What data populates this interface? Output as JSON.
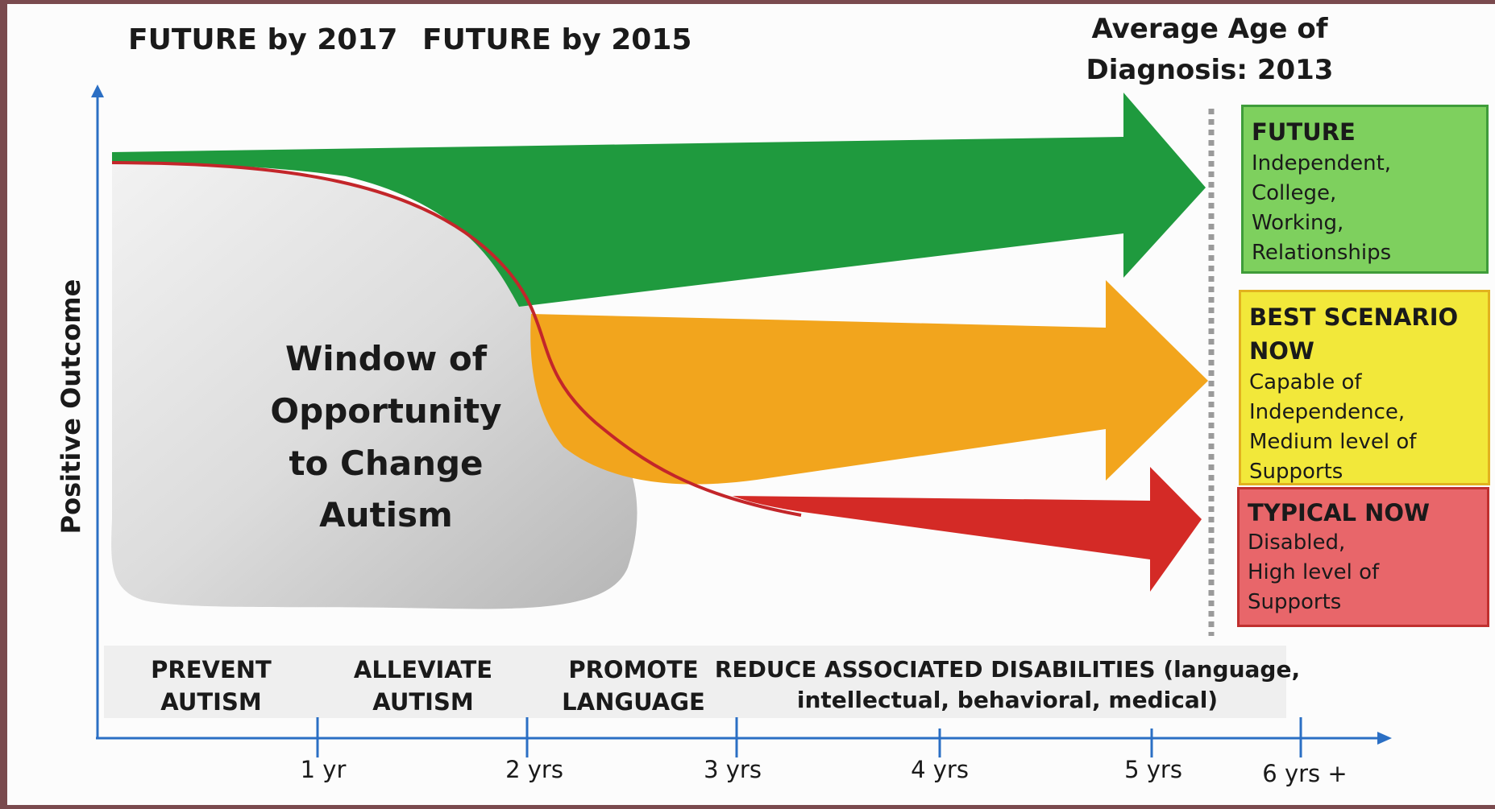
{
  "header": {
    "future_2017": "FUTURE by 2017",
    "future_2015": "FUTURE by 2015",
    "avg_age_line1": "Average Age of",
    "avg_age_line2": "Diagnosis: 2013"
  },
  "y_axis_label": "Positive Outcome",
  "window": {
    "lines": [
      "Window of",
      "Opportunity",
      "to Change",
      "Autism"
    ]
  },
  "outcomes": {
    "future": {
      "title": "FUTURE",
      "lines": [
        "Independent,",
        "College,",
        "Working,",
        "Relationships"
      ]
    },
    "best": {
      "title": "BEST SCENARIO\nNOW",
      "lines": [
        "Capable of",
        "Independence,",
        "Medium level of",
        "Supports"
      ]
    },
    "typical": {
      "title": "TYPICAL NOW",
      "lines": [
        "Disabled,",
        "High level of",
        "Supports"
      ]
    }
  },
  "phases": [
    {
      "lines": [
        "PREVENT",
        "AUTISM"
      ]
    },
    {
      "lines": [
        "ALLEVIATE",
        "AUTISM"
      ]
    },
    {
      "lines": [
        "PROMOTE",
        "LANGUAGE"
      ]
    },
    {
      "lines": [
        "REDUCE ASSOCIATED DISABILITIES (language,",
        "intellectual, behavioral, medical)"
      ]
    }
  ],
  "x_ticks": [
    "1 yr",
    "2 yrs",
    "3 yrs",
    "4 yrs",
    "5 yrs",
    "6 yrs +"
  ],
  "colors": {
    "green": "#1f9a3e",
    "orange": "#f2a51d",
    "red": "#d42a26",
    "axis": "#2b6fc4",
    "window": "#d8d8d8"
  }
}
